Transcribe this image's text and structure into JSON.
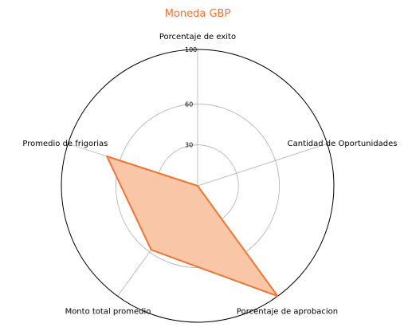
{
  "colors": {
    "series": "#f07534",
    "series_fill": "#f9c6a8",
    "grid": "#b0b0b0",
    "frame": "#000000"
  },
  "chart_data": {
    "type": "radar",
    "title": "Moneda GBP",
    "axes": [
      "Porcentaje de exito",
      "Cantidad de Oportunidades",
      "Porcentaje de aprobacion",
      "Monto total promedio",
      "Promedio de frigorias"
    ],
    "rlim": [
      0,
      100
    ],
    "r_ticks": [
      30,
      60,
      100
    ],
    "grid": true,
    "series": [
      {
        "values": [
          0,
          0,
          100,
          58,
          70
        ]
      }
    ]
  }
}
